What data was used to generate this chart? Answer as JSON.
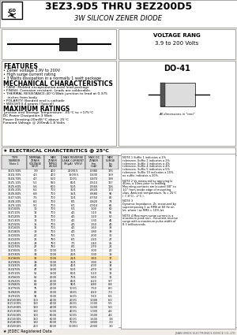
{
  "title_main": "3EZ3.9D5 THRU 3EZ200D5",
  "title_sub": "3W SILICON ZENER DIODE",
  "bg_color": "#f5f5f0",
  "voltage_range": "VOLTAGE RANG\n3.9 to 200 Volts",
  "package": "DO-41",
  "features_title": "FEATURES",
  "features": [
    "• Zener voltage 3.9V to 200V",
    "• High surge current rating",
    "• 3 Watts dissipation in a normally 1 watt package"
  ],
  "mech_title": "MECHANICAL CHARACTERISTICS",
  "mech": [
    "• CASE: Molded encapsulation,axial lead package",
    "• FINISH: Corrosion resistant. Leads are solderable.",
    "• THERMAL RESISTANCE:40°C/Watt junction to lead at 0.375",
    "    inches from body",
    "• POLARITY: Banded end is cathode",
    "• WEIGHT:0.4 grams (Typical)"
  ],
  "max_title": "MAXIMUM RATINGS",
  "max_ratings": [
    "Junction and Storage Temperature: -65°C to +175°C",
    "DC Power Dissipation:3 Watt",
    "Power Derating:20mW/°C above 25°C",
    "Forward Voltage @ 200mA:1.8 Volts"
  ],
  "elec_title": "★ ELECTRICAL CHARCTERITICS @ 25°C",
  "table_headers": [
    "TYPE\nNUMBER\nNote 1",
    "NOMINAL\nZENER\nVOLTAGE\nVz(V)\nNote 2",
    "MAXIMUM\nZENER\nIMPEDANCE\nZzt(Ω)\nNote 2",
    "MAXIMUM\nREVERSE\nLEAKAGE CURRENT\nIR(μA)\nVR(V)",
    "MAXIMUM DC\nZENER\nCURRENT\nIzm(mA)",
    "MAXIMUM\nSURGE\nCURRENT\nIzs(A)\nNote 4"
  ],
  "table_data": [
    [
      "3EZ3.9D5",
      "3.9",
      "400",
      "200",
      "10",
      "0.5",
      "0.0380",
      "10",
      "2",
      "175"
    ],
    [
      "3EZ4.3D5",
      "4.3",
      "400",
      "150",
      "10",
      "0.5",
      "0.0430",
      "10",
      "2",
      "159"
    ],
    [
      "3EZ4.7D5",
      "4.7",
      "500",
      "100",
      "10",
      "1",
      "0.0470",
      "10",
      "2",
      "138"
    ],
    [
      "3EZ5.1D5",
      "5.1",
      "550",
      "80",
      "10",
      "1",
      "0.0510",
      "10",
      "2",
      "127"
    ],
    [
      "3EZ5.6D5",
      "5.6",
      "600",
      "50",
      "10",
      "1",
      "0.0560",
      "5",
      "2",
      "116"
    ],
    [
      "3EZ6.2D5",
      "6.2",
      "700",
      "30",
      "10",
      "1",
      "0.0620",
      "5",
      "3",
      "100"
    ],
    [
      "3EZ6.8D5",
      "6.8",
      "700",
      "15",
      "10",
      "1",
      "0.0680",
      "5",
      "3",
      "90"
    ],
    [
      "3EZ7.5D5",
      "7.5",
      "700",
      "10",
      "10",
      "1",
      "0.0750",
      "5",
      "3",
      "80"
    ],
    [
      "3EZ8.2D5",
      "8.2",
      "700",
      "8",
      "10",
      "1",
      "0.0820",
      "5",
      "3",
      "73"
    ],
    [
      "3EZ9.1D5",
      "9.1",
      "700",
      "6",
      "10",
      "1",
      "0.0910",
      "5",
      "3",
      "66"
    ],
    [
      "3EZ10D5",
      "10",
      "700",
      "5",
      "10",
      "1",
      "0.100",
      "5",
      "3",
      "60"
    ],
    [
      "3EZ11D5",
      "11",
      "700",
      "4",
      "10",
      "1",
      "0.110",
      "5",
      "3",
      "55"
    ],
    [
      "3EZ12D5",
      "12",
      "700",
      "4",
      "10",
      "1",
      "0.120",
      "5",
      "3",
      "50"
    ],
    [
      "3EZ13D5",
      "13",
      "700",
      "4",
      "10",
      "1",
      "0.130",
      "5",
      "4",
      "46"
    ],
    [
      "3EZ15D5",
      "15",
      "700",
      "4",
      "10",
      "1",
      "0.150",
      "5",
      "4",
      "40"
    ],
    [
      "3EZ16D5",
      "16",
      "700",
      "4",
      "10",
      "1",
      "0.160",
      "5",
      "4",
      "38"
    ],
    [
      "3EZ18D5",
      "18",
      "700",
      "4",
      "10",
      "1",
      "0.180",
      "5",
      "4",
      "33"
    ],
    [
      "3EZ20D5",
      "20",
      "750",
      "5",
      "10",
      "1",
      "0.200",
      "5",
      "5",
      "30"
    ],
    [
      "3EZ22D5",
      "22",
      "750",
      "6",
      "10",
      "1",
      "0.220",
      "5",
      "5",
      "27"
    ],
    [
      "3EZ24D5",
      "24",
      "750",
      "7",
      "10",
      "1",
      "0.240",
      "5",
      "5",
      "25"
    ],
    [
      "3EZ27D5",
      "27",
      "750",
      "8",
      "10",
      "1",
      "0.270",
      "5",
      "5",
      "22"
    ],
    [
      "3EZ30D5",
      "30",
      "1000",
      "10",
      "10",
      "1",
      "0.300",
      "5",
      "5",
      "20"
    ],
    [
      "3EZ33D5",
      "33",
      "1000",
      "20",
      "10",
      "1",
      "0.330",
      "5",
      "5",
      "18"
    ],
    [
      "3EZ36D5",
      "36",
      "1000",
      "21",
      "10",
      "1",
      "0.360",
      "5",
      "5",
      "17"
    ],
    [
      "3EZ39D5",
      "39",
      "1000",
      "30",
      "10",
      "1",
      "0.390",
      "5",
      "5",
      "15"
    ],
    [
      "3EZ43D5",
      "43",
      "1500",
      "40",
      "10",
      "1",
      "0.430",
      "5",
      "5",
      "14"
    ],
    [
      "3EZ47D5",
      "47",
      "1500",
      "50",
      "10",
      "1",
      "0.470",
      "5",
      "5",
      "13"
    ],
    [
      "3EZ51D5",
      "51",
      "1500",
      "60",
      "10",
      "1",
      "0.510",
      "5",
      "5",
      "12"
    ],
    [
      "3EZ56D5",
      "56",
      "2000",
      "70",
      "10",
      "1",
      "0.560",
      "5",
      "5",
      "11"
    ],
    [
      "3EZ62D5",
      "62",
      "2000",
      "80",
      "10",
      "1",
      "0.620",
      "5",
      "5",
      "9.7"
    ],
    [
      "3EZ68D5",
      "68",
      "2000",
      "90",
      "10",
      "1",
      "0.680",
      "5",
      "5",
      "8.8"
    ],
    [
      "3EZ75D5",
      "75",
      "2000",
      "100",
      "10",
      "1",
      "0.750",
      "5",
      "5",
      "8.0"
    ],
    [
      "3EZ82D5",
      "82",
      "3000",
      "130",
      "10",
      "1",
      "0.820",
      "5",
      "5",
      "7.3"
    ],
    [
      "3EZ91D5",
      "91",
      "3000",
      "150",
      "10",
      "1",
      "0.910",
      "5",
      "5",
      "6.6"
    ],
    [
      "3EZ100D5",
      "100",
      "4000",
      "200",
      "10",
      "1",
      "1.000",
      "5",
      "5",
      "6.0"
    ],
    [
      "3EZ110D5",
      "110",
      "4000",
      "250",
      "10",
      "1",
      "1.100",
      "5",
      "5",
      "5.5"
    ],
    [
      "3EZ120D5",
      "120",
      "4000",
      "300",
      "10",
      "1",
      "1.200",
      "5",
      "5",
      "5.0"
    ],
    [
      "3EZ130D5",
      "130",
      "5000",
      "400",
      "10",
      "1",
      "1.300",
      "5",
      "5",
      "4.6"
    ],
    [
      "3EZ150D5",
      "150",
      "6000",
      "500",
      "10",
      "1",
      "1.500",
      "5",
      "5",
      "4.0"
    ],
    [
      "3EZ160D5",
      "160",
      "6000",
      "600",
      "10",
      "1",
      "1.600",
      "5",
      "5",
      "3.8"
    ],
    [
      "3EZ180D5",
      "180",
      "6000",
      "700",
      "10",
      "1",
      "1.800",
      "5",
      "5",
      "3.3"
    ],
    [
      "3EZ200D5",
      "200",
      "8000",
      "1000",
      "10",
      "1",
      "2.000",
      "5",
      "5",
      "3.0"
    ]
  ],
  "notes": [
    "NOTE 1 Suffix 1 indicates a 1% tolerance. Suffix 2 indicates a 2% tolerance. Suffix 3 indicates a 3% tolerance. Suffix 4 indicates a 4% tolerance. Suffix 5 indicates a 5% tolerance. Suffix 10 indicates a 10%. no suffix indicates a 20%.",
    "NOTE 2 Vz measured by applying Iz 40ms, a 10ms prior to reading. Mounting contacts are located 3/8\" to 1/2\" from inside edge of mounting clips. Ambient temperature, Ta = 25°C ( + 8°C/ - 2°C ).",
    "NOTE 3\nDynamic Impedance, Zt, measured by superimposing 1 ac RMS at 60 Hz on Izt, where I ac RMS = 10% Izt.",
    "NOTE 4 Maximum surge current is a maximum peak non - recurrent reverse surge with a maximum pulse width of 8.3 milliseconds."
  ],
  "footer": "★ JEDEC Registered Data",
  "company": "JINAN UNICK ELECTRONICS DEVICE CO.,LTD"
}
